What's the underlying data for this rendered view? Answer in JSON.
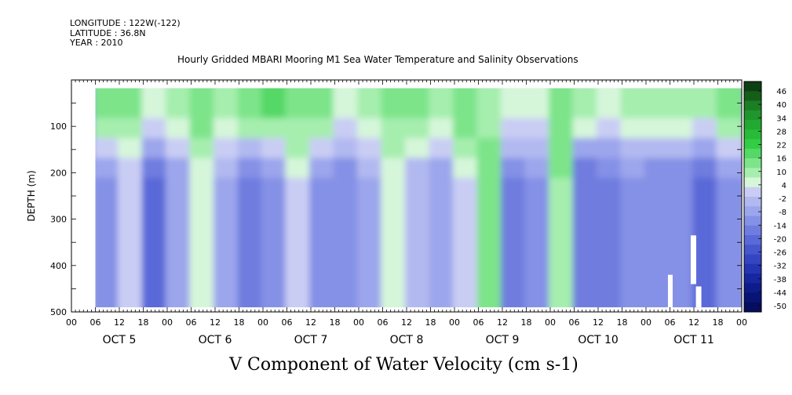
{
  "header": {
    "longitude": "LONGITUDE : 122W(-122)",
    "latitude": "LATITUDE : 36.8N",
    "year": "YEAR : 2010"
  },
  "title": "Hourly Gridded MBARI Mooring M1 Sea Water Temperature and Salinity Observations",
  "footer": "V Component of Water Velocity (cm s-1)",
  "chart_data": {
    "type": "heatmap",
    "title": "Hourly Gridded MBARI Mooring M1 Sea Water Temperature and Salinity Observations",
    "xlabel": "",
    "ylabel": "DEPTH (m)",
    "ylim": [
      500,
      0
    ],
    "yticks": [
      100,
      200,
      300,
      400,
      500
    ],
    "hour_tick_labels": [
      "00",
      "06",
      "12",
      "18"
    ],
    "days": [
      "OCT 5",
      "OCT 6",
      "OCT 7",
      "OCT 8",
      "OCT 9",
      "OCT 10",
      "OCT 11"
    ],
    "x_range_hours": [
      0,
      168
    ],
    "data_depth_range": [
      18,
      490
    ],
    "data_time_range_hours": [
      6,
      168
    ],
    "colorbar": {
      "levels": [
        "46",
        "40",
        "34",
        "28",
        "22",
        "16",
        "10",
        "4",
        "-2",
        "-8",
        "-14",
        "-20",
        "-26",
        "-32",
        "-38",
        "-44",
        "-50"
      ],
      "range": [
        -50,
        50
      ],
      "colors_top_to_bottom": [
        "#0e3f12",
        "#145e1a",
        "#1b7d24",
        "#1f962b",
        "#22a932",
        "#27bb38",
        "#33cc45",
        "#55d866",
        "#7de48a",
        "#a6eeae",
        "#d6f6da",
        "#c9cdf4",
        "#b2b9f0",
        "#9ca6ec",
        "#8591e6",
        "#6f7ddf",
        "#5a69d8",
        "#4656cd",
        "#3445c2",
        "#2434b2",
        "#17279f",
        "#0e1c8a",
        "#081474",
        "#050d5e"
      ]
    },
    "columns": [
      {
        "hour": 8,
        "surface": 16,
        "deep": -10
      },
      {
        "hour": 14,
        "surface": 14,
        "deep": 2
      },
      {
        "hour": 20,
        "surface": 8,
        "deep": -20
      },
      {
        "hour": 26,
        "surface": 10,
        "deep": -8
      },
      {
        "hour": 32,
        "surface": 16,
        "deep": 6
      },
      {
        "hour": 38,
        "surface": 12,
        "deep": -6
      },
      {
        "hour": 44,
        "surface": 16,
        "deep": -14
      },
      {
        "hour": 50,
        "surface": 18,
        "deep": -10
      },
      {
        "hour": 56,
        "surface": 14,
        "deep": 4
      },
      {
        "hour": 62,
        "surface": 16,
        "deep": -10
      },
      {
        "hour": 68,
        "surface": 8,
        "deep": -12
      },
      {
        "hour": 74,
        "surface": 12,
        "deep": -6
      },
      {
        "hour": 80,
        "surface": 14,
        "deep": 6
      },
      {
        "hour": 86,
        "surface": 16,
        "deep": -4
      },
      {
        "hour": 92,
        "surface": 10,
        "deep": -8
      },
      {
        "hour": 98,
        "surface": 16,
        "deep": 4
      },
      {
        "hour": 104,
        "surface": 12,
        "deep": 14
      },
      {
        "hour": 110,
        "surface": 8,
        "deep": -14
      },
      {
        "hour": 116,
        "surface": 8,
        "deep": -10
      },
      {
        "hour": 122,
        "surface": 16,
        "deep": 12
      },
      {
        "hour": 128,
        "surface": 10,
        "deep": -16
      },
      {
        "hour": 134,
        "surface": 6,
        "deep": -14
      },
      {
        "hour": 140,
        "surface": 10,
        "deep": -10
      },
      {
        "hour": 146,
        "surface": 12,
        "deep": -12
      },
      {
        "hour": 152,
        "surface": 12,
        "deep": -12
      },
      {
        "hour": 158,
        "surface": 10,
        "deep": -18
      },
      {
        "hour": 164,
        "surface": 16,
        "deep": -10
      }
    ]
  }
}
